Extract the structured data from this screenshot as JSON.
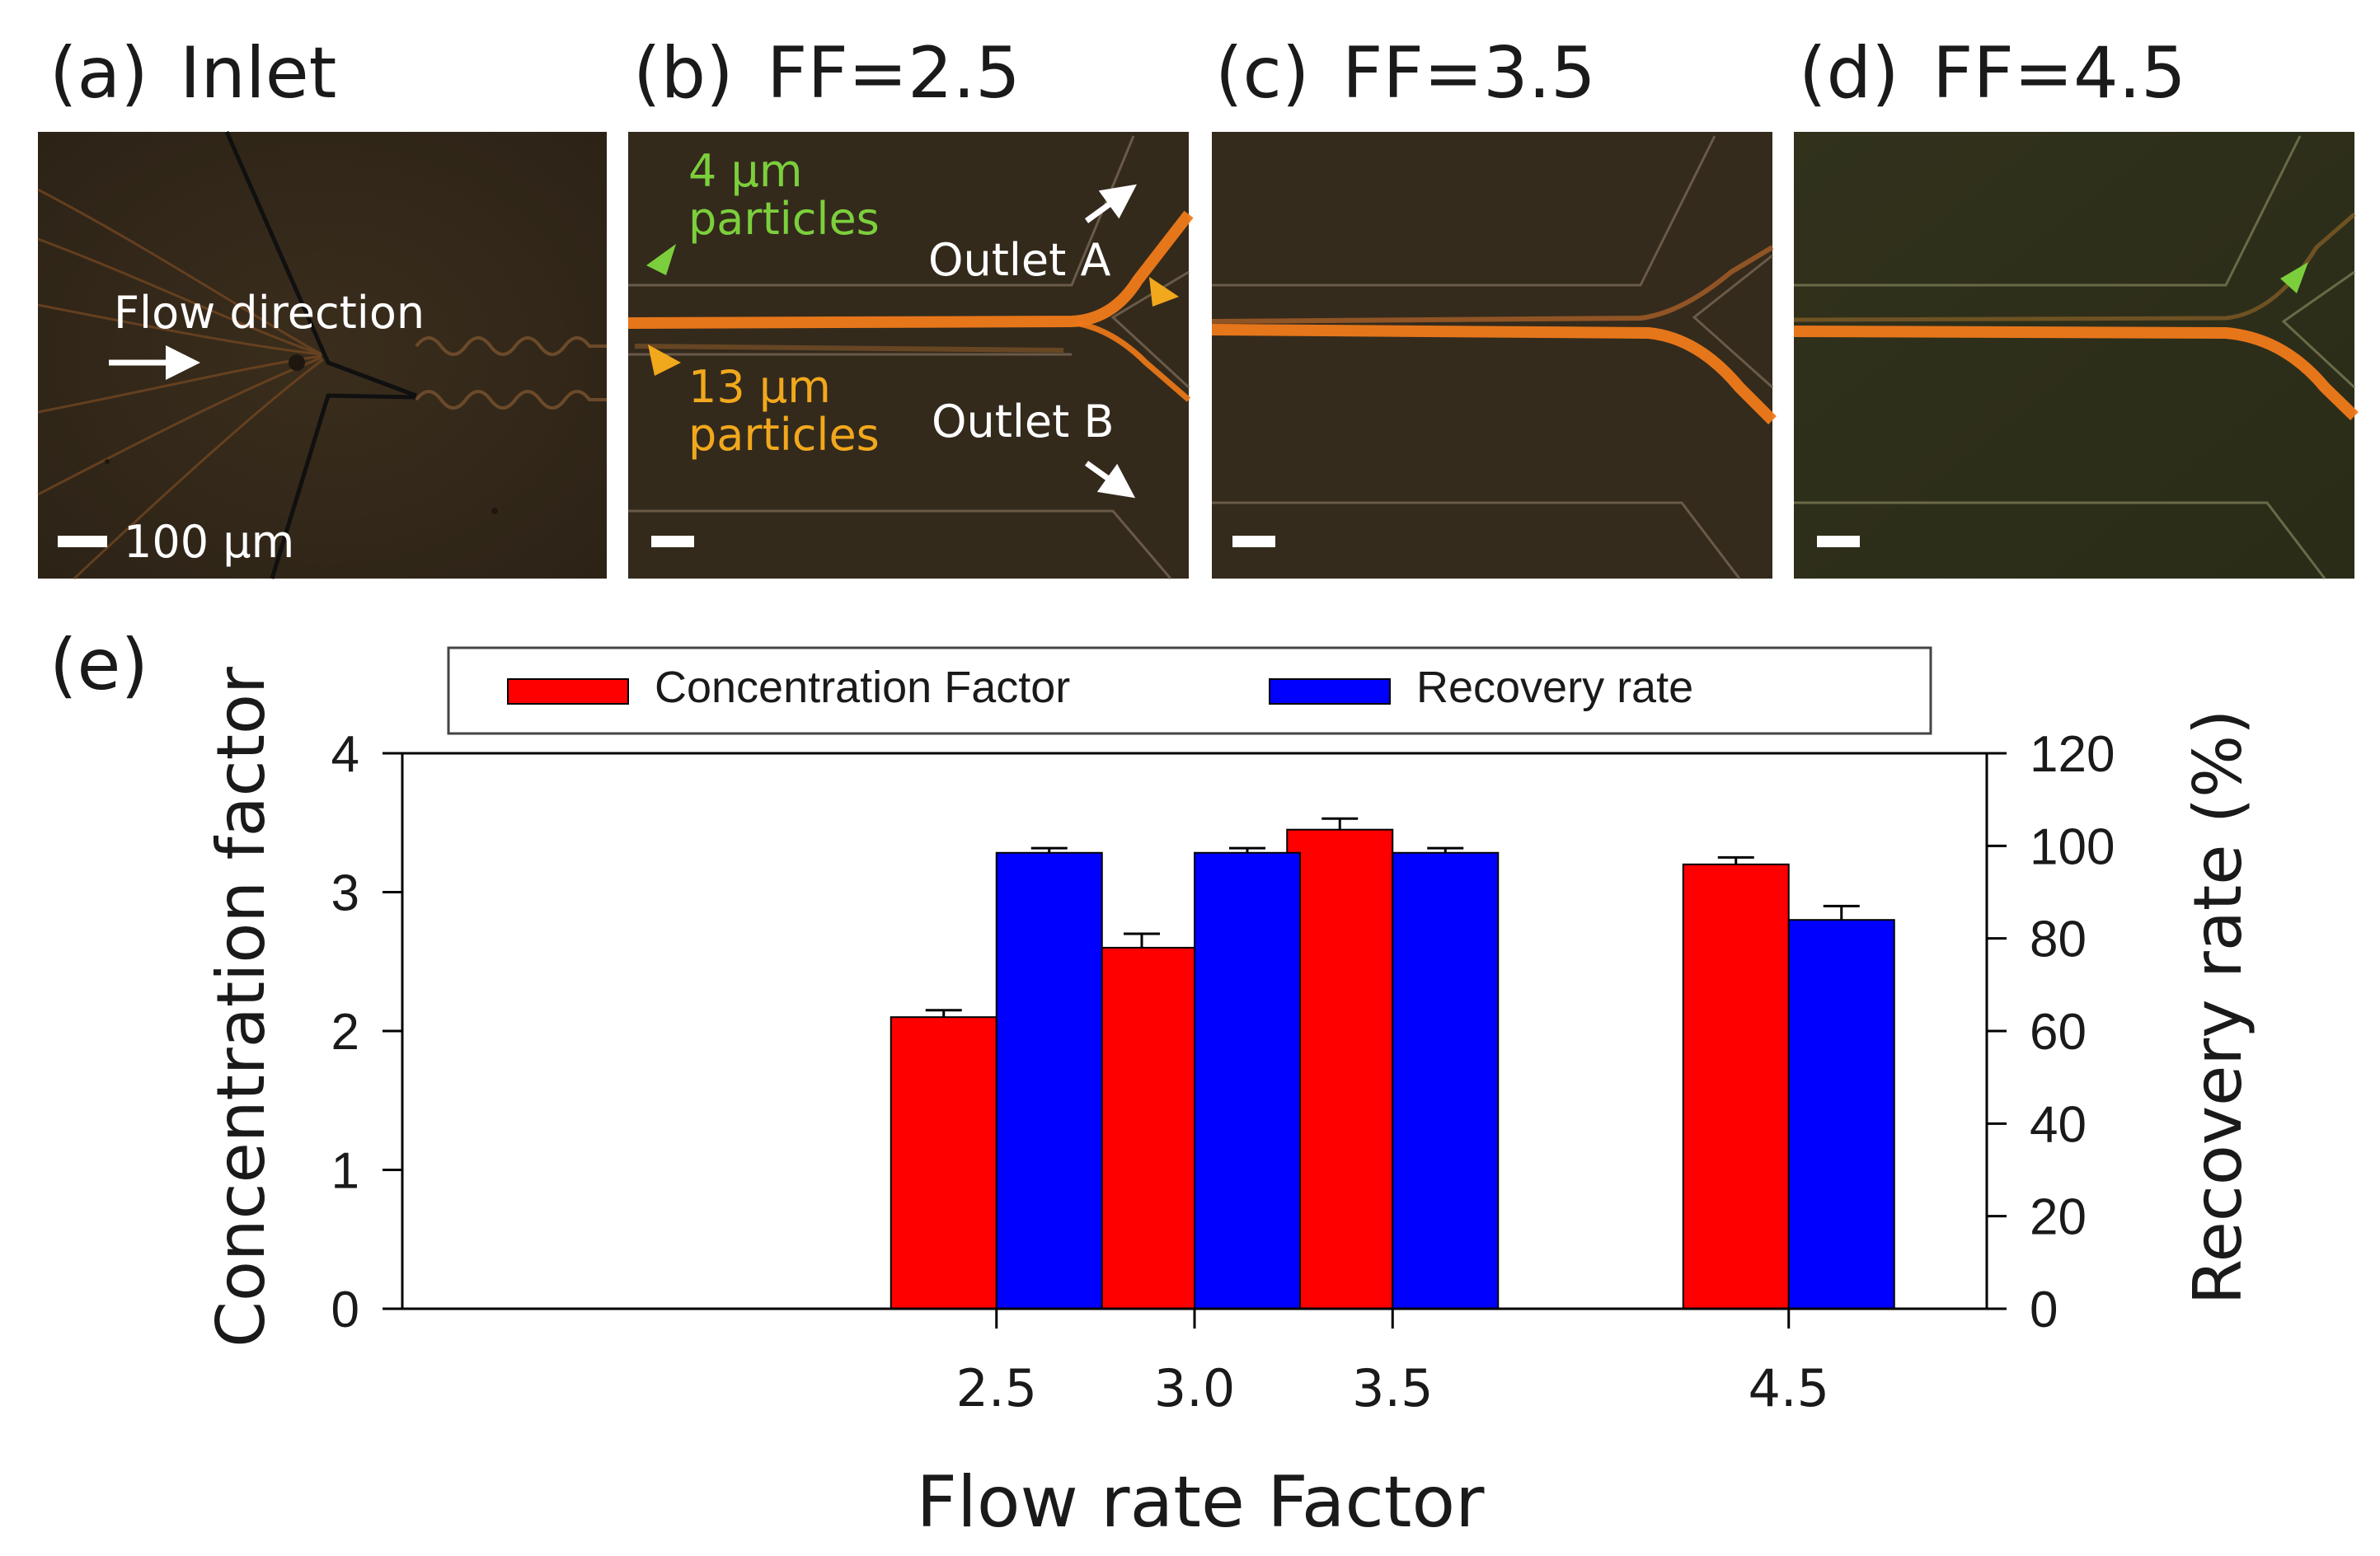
{
  "panels": [
    {
      "label": "(a)",
      "title": "Inlet",
      "annotations": {
        "flow": "Flow direction",
        "scale": "100 µm"
      }
    },
    {
      "label": "(b)",
      "title": "FF=2.5",
      "annotations": {
        "small_particles_size": "4 µm",
        "small_particles_word": "particles",
        "large_particles_size": "13 µm",
        "large_particles_word": "particles",
        "outlet_a": "Outlet A",
        "outlet_b": "Outlet B"
      }
    },
    {
      "label": "(c)",
      "title": "FF=3.5"
    },
    {
      "label": "(d)",
      "title": "FF=4.5"
    }
  ],
  "panel_e_label": "(e)",
  "colors": {
    "concentration": "#ff0000",
    "recovery": "#0000ff",
    "small_particles": "#7ccf3c",
    "large_particles": "#f2a81c",
    "micro_bg": "#33291c",
    "stream": "#f07a1a"
  },
  "chart_data": {
    "type": "bar",
    "xlabel": "Flow rate Factor",
    "ylabel": "Concentration factor",
    "y2label": "Recovery rate (%)",
    "x": [
      2.5,
      3.0,
      3.5,
      4.5
    ],
    "categories": [
      "2.5",
      "3.0",
      "3.5",
      "4.5"
    ],
    "xlim": [
      1.0,
      5.0
    ],
    "ylim": [
      0,
      4
    ],
    "y2lim": [
      0,
      120
    ],
    "yticks": [
      "0",
      "1",
      "2",
      "3",
      "4"
    ],
    "y2ticks": [
      "0",
      "20",
      "40",
      "60",
      "80",
      "100",
      "120"
    ],
    "legend": {
      "position": "top",
      "entries": [
        "Concentration Factor",
        "Recovery rate"
      ]
    },
    "series": [
      {
        "name": "Concentration Factor",
        "axis": "left",
        "values": [
          2.1,
          2.6,
          3.45,
          3.2
        ],
        "errors": [
          0.05,
          0.1,
          0.08,
          0.05
        ]
      },
      {
        "name": "Recovery rate",
        "axis": "right",
        "values": [
          98.5,
          98.5,
          98.5,
          84
        ],
        "errors": [
          1,
          1,
          1,
          3
        ]
      }
    ]
  }
}
